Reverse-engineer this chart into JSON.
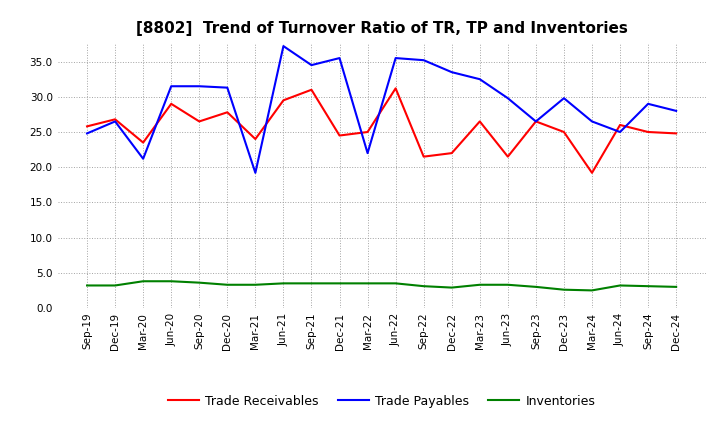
{
  "title": "[8802]  Trend of Turnover Ratio of TR, TP and Inventories",
  "labels": [
    "Sep-19",
    "Dec-19",
    "Mar-20",
    "Jun-20",
    "Sep-20",
    "Dec-20",
    "Mar-21",
    "Jun-21",
    "Sep-21",
    "Dec-21",
    "Mar-22",
    "Jun-22",
    "Sep-22",
    "Dec-22",
    "Mar-23",
    "Jun-23",
    "Sep-23",
    "Dec-23",
    "Mar-24",
    "Jun-24",
    "Sep-24",
    "Dec-24"
  ],
  "trade_receivables": [
    25.8,
    26.8,
    23.5,
    29.0,
    26.5,
    27.8,
    24.0,
    29.5,
    31.0,
    24.5,
    25.0,
    31.2,
    21.5,
    22.0,
    26.5,
    21.5,
    26.5,
    25.0,
    19.2,
    26.0,
    25.0,
    24.8
  ],
  "trade_payables": [
    24.8,
    26.5,
    21.2,
    31.5,
    31.5,
    31.3,
    19.2,
    37.2,
    34.5,
    35.5,
    22.0,
    35.5,
    35.2,
    33.5,
    32.5,
    29.8,
    26.5,
    29.8,
    26.5,
    25.0,
    29.0,
    28.0
  ],
  "inventories": [
    3.2,
    3.2,
    3.8,
    3.8,
    3.6,
    3.3,
    3.3,
    3.5,
    3.5,
    3.5,
    3.5,
    3.5,
    3.1,
    2.9,
    3.3,
    3.3,
    3.0,
    2.6,
    2.5,
    3.2,
    3.1,
    3.0
  ],
  "tr_color": "#ff0000",
  "tp_color": "#0000ff",
  "inv_color": "#008000",
  "ylim": [
    0.0,
    37.5
  ],
  "yticks": [
    0.0,
    5.0,
    10.0,
    15.0,
    20.0,
    25.0,
    30.0,
    35.0
  ],
  "legend_labels": [
    "Trade Receivables",
    "Trade Payables",
    "Inventories"
  ],
  "background_color": "#ffffff",
  "grid_color": "#999999",
  "title_fontsize": 11,
  "tick_fontsize": 7.5,
  "legend_fontsize": 9
}
